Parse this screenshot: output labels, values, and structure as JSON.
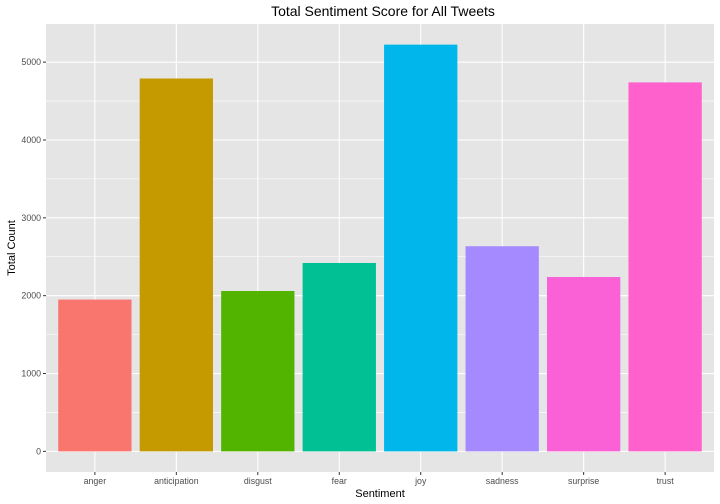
{
  "chart_data": {
    "type": "bar",
    "title": "Total Sentiment Score for All Tweets",
    "xlabel": "Sentiment",
    "ylabel": "Total Count",
    "categories": [
      "anger",
      "anticipation",
      "disgust",
      "fear",
      "joy",
      "sadness",
      "surprise",
      "trust"
    ],
    "values": [
      1950,
      4790,
      2060,
      2420,
      5225,
      2635,
      2240,
      4740
    ],
    "colors": [
      "#F8766D",
      "#C49A00",
      "#53B400",
      "#00C094",
      "#00B6EB",
      "#A58AFF",
      "#FB61D7",
      "#FF61CC"
    ],
    "ylim": [
      -265,
      5490
    ],
    "yticks": [
      0,
      1000,
      2000,
      3000,
      4000,
      5000
    ],
    "ytick_labels": [
      "0",
      "1000",
      "2000",
      "3000",
      "4000",
      "5000"
    ],
    "grid": true,
    "legend": "none",
    "panel_background": "#E5E5E5",
    "grid_color": "#FFFFFF"
  }
}
